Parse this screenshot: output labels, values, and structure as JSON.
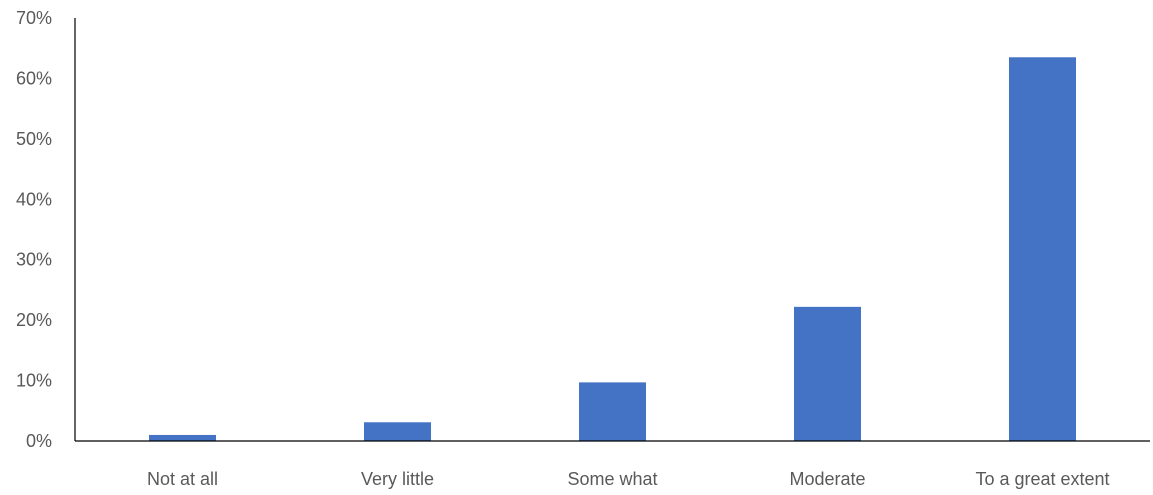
{
  "chart_data": {
    "type": "bar",
    "title": "",
    "xlabel": "",
    "ylabel": "",
    "categories": [
      "Not at all",
      "Very little",
      "Some what",
      "Moderate",
      "To a great extent"
    ],
    "values": [
      1,
      3.1,
      9.7,
      22.2,
      63.5
    ],
    "ylim": [
      0,
      70
    ],
    "ytick_values": [
      0,
      10,
      20,
      30,
      40,
      50,
      60,
      70
    ],
    "ytick_labels": [
      "0%",
      "10%",
      "20%",
      "30%",
      "40%",
      "50%",
      "60%",
      "70%"
    ],
    "value_format": "percent",
    "grid": false,
    "legend": "none",
    "bar_color": "#4472C4"
  }
}
